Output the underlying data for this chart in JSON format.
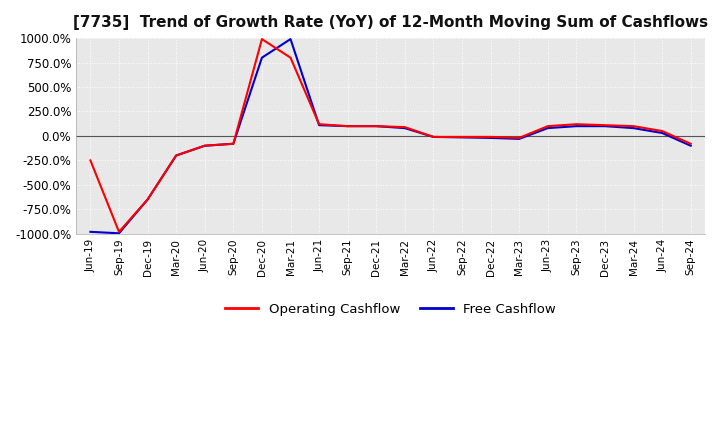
{
  "title": "[7735]  Trend of Growth Rate (YoY) of 12-Month Moving Sum of Cashflows",
  "title_fontsize": 11,
  "ylim": [
    -1000,
    1000
  ],
  "yticks": [
    -1000,
    -750,
    -500,
    -250,
    0,
    250,
    500,
    750,
    1000
  ],
  "yticklabels": [
    "-1000.0%",
    "-750.0%",
    "-500.0%",
    "-250.0%",
    "0.0%",
    "250.0%",
    "500.0%",
    "750.0%",
    "1000.0%"
  ],
  "background_color": "#ffffff",
  "plot_bg_color": "#e8e8e8",
  "grid_color": "#ffffff",
  "operating_color": "#ff0000",
  "free_color": "#0000cc",
  "legend_labels": [
    "Operating Cashflow",
    "Free Cashflow"
  ],
  "x_labels": [
    "Jun-19",
    "Sep-19",
    "Dec-19",
    "Mar-20",
    "Jun-20",
    "Sep-20",
    "Dec-20",
    "Mar-21",
    "Jun-21",
    "Sep-21",
    "Dec-21",
    "Mar-22",
    "Jun-22",
    "Sep-22",
    "Dec-22",
    "Mar-23",
    "Jun-23",
    "Sep-23",
    "Dec-23",
    "Mar-24",
    "Jun-24",
    "Sep-24"
  ],
  "operating_cashflow": [
    -250,
    -980,
    -650,
    -200,
    -100,
    -80,
    990,
    800,
    120,
    100,
    100,
    90,
    -10,
    -10,
    -10,
    -20,
    100,
    120,
    110,
    100,
    50,
    -80
  ],
  "free_cashflow": [
    -980,
    -995,
    -650,
    -200,
    -100,
    -80,
    800,
    990,
    110,
    100,
    100,
    80,
    -10,
    -15,
    -20,
    -30,
    80,
    100,
    100,
    80,
    30,
    -100
  ]
}
